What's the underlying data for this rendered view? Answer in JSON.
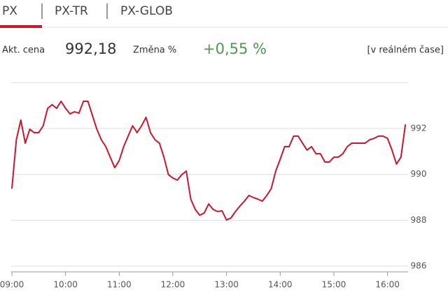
{
  "tabs": [
    "PX",
    "PX-TR",
    "PX-GLOB"
  ],
  "quote": {
    "price_label": "Akt. cena",
    "price": "992,18",
    "change_label": "Změna %",
    "change": "+0,55 %",
    "mode": "[v reálném čase]"
  },
  "chart_data": {
    "type": "line",
    "x": [
      "09:00",
      "09:05",
      "09:10",
      "09:15",
      "09:20",
      "09:25",
      "09:30",
      "09:35",
      "09:40",
      "09:45",
      "09:50",
      "09:55",
      "10:00",
      "10:05",
      "10:10",
      "10:15",
      "10:20",
      "10:25",
      "10:30",
      "10:35",
      "10:40",
      "10:45",
      "10:50",
      "10:55",
      "11:00",
      "11:05",
      "11:10",
      "11:15",
      "11:20",
      "11:25",
      "11:30",
      "11:35",
      "11:40",
      "11:45",
      "11:50",
      "11:55",
      "12:00",
      "12:05",
      "12:10",
      "12:15",
      "12:20",
      "12:25",
      "12:30",
      "12:35",
      "12:40",
      "12:45",
      "12:50",
      "12:55",
      "13:00",
      "13:05",
      "13:10",
      "13:15",
      "13:20",
      "13:25",
      "13:30",
      "13:35",
      "13:40",
      "13:45",
      "13:50",
      "13:55",
      "14:00",
      "14:05",
      "14:10",
      "14:15",
      "14:20",
      "14:25",
      "14:30",
      "14:35",
      "14:40",
      "14:45",
      "14:50",
      "14:55",
      "15:00",
      "15:05",
      "15:10",
      "15:15",
      "15:20",
      "15:25",
      "15:30",
      "15:35",
      "15:40",
      "15:45",
      "15:50",
      "15:55",
      "16:00",
      "16:05",
      "16:10",
      "16:15",
      "16:20"
    ],
    "series": [
      {
        "name": "PX",
        "color": "#d0142c",
        "values": [
          989.38,
          991.51,
          992.37,
          991.36,
          991.97,
          991.82,
          991.82,
          992.12,
          992.88,
          993.04,
          992.88,
          993.19,
          992.88,
          992.64,
          992.73,
          992.67,
          993.19,
          993.19,
          992.58,
          991.97,
          991.51,
          991.21,
          990.75,
          990.29,
          990.6,
          991.21,
          991.67,
          992.12,
          991.82,
          992.12,
          992.49,
          991.82,
          991.51,
          991.36,
          990.75,
          989.99,
          989.84,
          989.75,
          989.99,
          990.14,
          988.92,
          988.47,
          988.22,
          988.31,
          988.71,
          988.47,
          988.38,
          988.41,
          988.01,
          988.1,
          988.38,
          988.62,
          988.83,
          989.08,
          988.99,
          988.92,
          988.83,
          989.08,
          989.38,
          990.14,
          990.66,
          991.21,
          991.21,
          991.67,
          991.67,
          991.36,
          991.06,
          991.21,
          990.9,
          990.9,
          990.54,
          990.54,
          990.75,
          990.75,
          990.9,
          991.21,
          991.36,
          991.36,
          991.36,
          991.36,
          991.51,
          991.57,
          991.67,
          991.67,
          991.57,
          991.06,
          990.45,
          990.75,
          992.18
        ]
      }
    ],
    "xlim": [
      "08:59",
      "16:23"
    ],
    "xticks": [
      "09:00",
      "10:00",
      "11:00",
      "12:00",
      "13:00",
      "14:00",
      "15:00",
      "16:00"
    ],
    "ylim": [
      985.75,
      994
    ],
    "yticks": [
      986,
      988,
      990,
      992
    ],
    "grid": true
  }
}
